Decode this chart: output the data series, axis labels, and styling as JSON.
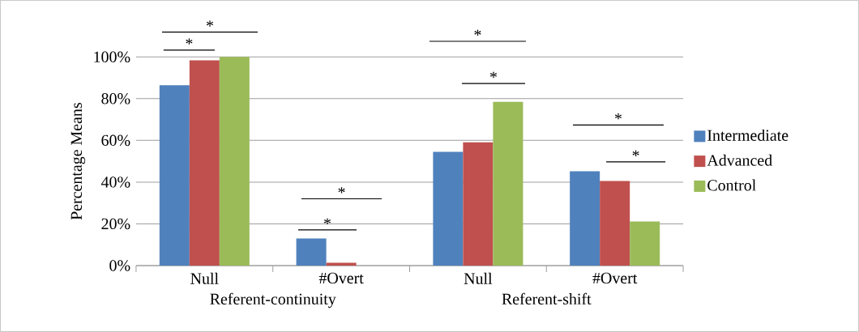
{
  "chart_data": {
    "type": "bar",
    "ylabel": "Percentage Means",
    "categories": [
      "Null",
      "#Overt",
      "Null",
      "#Overt"
    ],
    "series": [
      {
        "name": "Intermediate",
        "color": "#4f81bd",
        "values": [
          86.4,
          13.0,
          54.5,
          45.2
        ]
      },
      {
        "name": "Advanced",
        "color": "#c0504d",
        "values": [
          98.4,
          1.3,
          59.1,
          40.5
        ]
      },
      {
        "name": "Control",
        "color": "#9bbb59",
        "values": [
          100,
          0,
          78.5,
          21.1
        ]
      }
    ],
    "ylim": [
      0,
      100
    ],
    "yticks": [
      {
        "value": 0,
        "label": "0%"
      },
      {
        "value": 20,
        "label": "20%"
      },
      {
        "value": 40,
        "label": "40%"
      },
      {
        "value": 60,
        "label": "60%"
      },
      {
        "value": 80,
        "label": "80%"
      },
      {
        "value": 100,
        "label": "100%"
      }
    ],
    "grid": "y",
    "legend": "right",
    "annotations": [
      "Referent-continuity",
      "Referent-shift",
      "*",
      "*",
      "*",
      "*",
      "*",
      "*",
      "*",
      "*"
    ]
  }
}
